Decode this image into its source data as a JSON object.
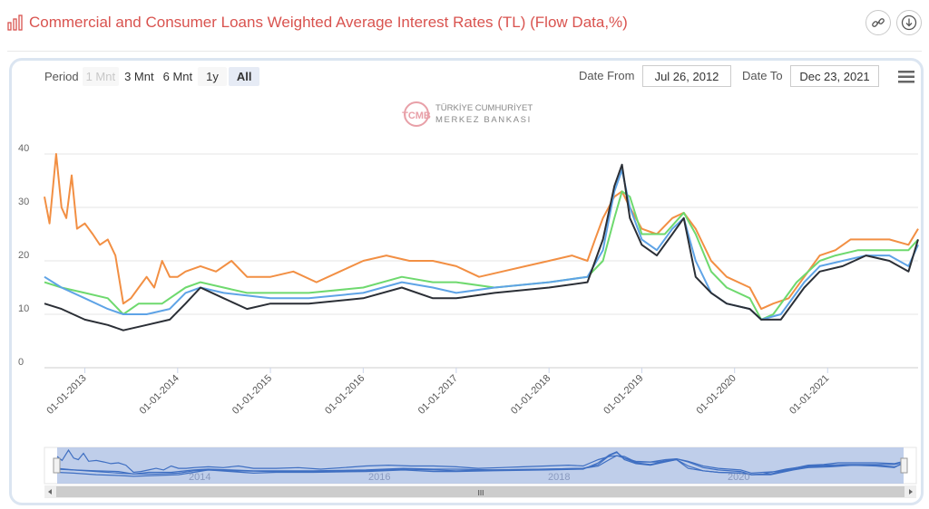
{
  "header": {
    "title": "Commercial and Consumer Loans Weighted Average Interest Rates (TL) (Flow Data,%)",
    "title_icon": "bar-chart-icon",
    "link_button_icon": "link-icon",
    "download_button_icon": "download-icon"
  },
  "range_selector": {
    "label": "Period",
    "buttons": [
      "1 Mnt",
      "3 Mnt",
      "6 Mnt",
      "1y",
      "All"
    ],
    "selected": "All",
    "disabled": "1 Mnt"
  },
  "date_inputs": {
    "from_label": "Date From",
    "from_value": "Jul 26, 2012",
    "to_label": "Date To",
    "to_value": "Dec 23, 2021"
  },
  "menu_icon": "hamburger-menu-icon",
  "watermark": {
    "line1": "TÜRKİYE CUMHURİYET",
    "line2": "MERKEZ BANKASI",
    "logo_letters": "TCMB"
  },
  "navigator": {
    "year_labels": [
      "2014",
      "2016",
      "2018",
      "2020"
    ],
    "scrollbar_grip": "III"
  },
  "colors": {
    "title": "#d9534f",
    "series_orange": "#f28f43",
    "series_green": "#6ed96e",
    "series_blue": "#5ea3e6",
    "series_dark": "#2b2f36",
    "navigator_fill": "#b4c6e6",
    "navigator_line": "#3f6fc2"
  },
  "chart_data": {
    "type": "line",
    "title": "Commercial and Consumer Loans Weighted Average Interest Rates (TL) (Flow Data,%)",
    "ylim": [
      0,
      40
    ],
    "yticks": [
      0,
      10,
      20,
      30,
      40
    ],
    "xlim": [
      "2012-07-26",
      "2021-12-23"
    ],
    "xticks": [
      "01-01-2013",
      "01-01-2014",
      "01-01-2015",
      "01-01-2016",
      "01-01-2017",
      "01-01-2018",
      "01-01-2019",
      "01-01-2020",
      "01-01-2021"
    ],
    "grid": true,
    "series": [
      {
        "color": "#f28f43",
        "points": [
          [
            "2012-07-26",
            32
          ],
          [
            "2012-08-15",
            27
          ],
          [
            "2012-09-10",
            40
          ],
          [
            "2012-10-01",
            30
          ],
          [
            "2012-10-20",
            28
          ],
          [
            "2012-11-10",
            36
          ],
          [
            "2012-12-01",
            26
          ],
          [
            "2013-01-01",
            27
          ],
          [
            "2013-02-01",
            25
          ],
          [
            "2013-03-01",
            23
          ],
          [
            "2013-04-01",
            24
          ],
          [
            "2013-05-01",
            21
          ],
          [
            "2013-06-01",
            12
          ],
          [
            "2013-07-01",
            13
          ],
          [
            "2013-08-01",
            15
          ],
          [
            "2013-09-01",
            17
          ],
          [
            "2013-10-01",
            15
          ],
          [
            "2013-11-01",
            20
          ],
          [
            "2013-12-01",
            17
          ],
          [
            "2014-01-01",
            17
          ],
          [
            "2014-02-01",
            18
          ],
          [
            "2014-04-01",
            19
          ],
          [
            "2014-06-01",
            18
          ],
          [
            "2014-08-01",
            20
          ],
          [
            "2014-10-01",
            17
          ],
          [
            "2015-01-01",
            17
          ],
          [
            "2015-04-01",
            18
          ],
          [
            "2015-07-01",
            16
          ],
          [
            "2015-10-01",
            18
          ],
          [
            "2016-01-01",
            20
          ],
          [
            "2016-04-01",
            21
          ],
          [
            "2016-07-01",
            20
          ],
          [
            "2016-10-01",
            20
          ],
          [
            "2017-01-01",
            19
          ],
          [
            "2017-04-01",
            17
          ],
          [
            "2017-07-01",
            18
          ],
          [
            "2017-10-01",
            19
          ],
          [
            "2018-01-01",
            20
          ],
          [
            "2018-04-01",
            21
          ],
          [
            "2018-06-01",
            20
          ],
          [
            "2018-07-01",
            24
          ],
          [
            "2018-08-01",
            28
          ],
          [
            "2018-09-15",
            32
          ],
          [
            "2018-10-15",
            33
          ],
          [
            "2018-11-15",
            30
          ],
          [
            "2019-01-01",
            26
          ],
          [
            "2019-03-01",
            25
          ],
          [
            "2019-05-01",
            28
          ],
          [
            "2019-06-15",
            29
          ],
          [
            "2019-08-01",
            26
          ],
          [
            "2019-10-01",
            20
          ],
          [
            "2019-12-01",
            17
          ],
          [
            "2020-03-01",
            15
          ],
          [
            "2020-04-15",
            11
          ],
          [
            "2020-06-01",
            12
          ],
          [
            "2020-08-01",
            13
          ],
          [
            "2020-10-01",
            17
          ],
          [
            "2020-12-01",
            21
          ],
          [
            "2021-02-01",
            22
          ],
          [
            "2021-04-01",
            24
          ],
          [
            "2021-06-01",
            24
          ],
          [
            "2021-09-01",
            24
          ],
          [
            "2021-11-15",
            23
          ],
          [
            "2021-12-23",
            26
          ]
        ]
      },
      {
        "color": "#6ed96e",
        "points": [
          [
            "2012-07-26",
            16
          ],
          [
            "2012-10-01",
            15
          ],
          [
            "2013-01-01",
            14
          ],
          [
            "2013-04-01",
            13
          ],
          [
            "2013-06-01",
            10
          ],
          [
            "2013-08-01",
            12
          ],
          [
            "2013-11-01",
            12
          ],
          [
            "2014-02-01",
            15
          ],
          [
            "2014-04-01",
            16
          ],
          [
            "2014-07-01",
            15
          ],
          [
            "2014-10-01",
            14
          ],
          [
            "2015-01-01",
            14
          ],
          [
            "2015-06-01",
            14
          ],
          [
            "2016-01-01",
            15
          ],
          [
            "2016-06-01",
            17
          ],
          [
            "2016-10-01",
            16
          ],
          [
            "2017-01-01",
            16
          ],
          [
            "2017-06-01",
            15
          ],
          [
            "2018-01-01",
            16
          ],
          [
            "2018-06-01",
            17
          ],
          [
            "2018-08-01",
            20
          ],
          [
            "2018-09-15",
            28
          ],
          [
            "2018-10-15",
            33
          ],
          [
            "2018-11-15",
            32
          ],
          [
            "2019-01-01",
            25
          ],
          [
            "2019-04-01",
            25
          ],
          [
            "2019-06-15",
            29
          ],
          [
            "2019-08-01",
            25
          ],
          [
            "2019-10-01",
            18
          ],
          [
            "2019-12-01",
            15
          ],
          [
            "2020-03-01",
            13
          ],
          [
            "2020-04-15",
            9
          ],
          [
            "2020-06-01",
            10
          ],
          [
            "2020-09-01",
            16
          ],
          [
            "2020-12-01",
            20
          ],
          [
            "2021-02-01",
            21
          ],
          [
            "2021-05-01",
            22
          ],
          [
            "2021-08-01",
            22
          ],
          [
            "2021-11-15",
            22
          ],
          [
            "2021-12-23",
            24
          ]
        ]
      },
      {
        "color": "#5ea3e6",
        "points": [
          [
            "2012-07-26",
            17
          ],
          [
            "2012-10-01",
            15
          ],
          [
            "2013-01-01",
            13
          ],
          [
            "2013-04-01",
            11
          ],
          [
            "2013-06-01",
            10
          ],
          [
            "2013-09-01",
            10
          ],
          [
            "2013-12-01",
            11
          ],
          [
            "2014-02-01",
            14
          ],
          [
            "2014-04-01",
            15
          ],
          [
            "2014-07-01",
            14
          ],
          [
            "2015-01-01",
            13
          ],
          [
            "2015-06-01",
            13
          ],
          [
            "2016-01-01",
            14
          ],
          [
            "2016-06-01",
            16
          ],
          [
            "2016-10-01",
            15
          ],
          [
            "2017-01-01",
            14
          ],
          [
            "2017-06-01",
            15
          ],
          [
            "2018-01-01",
            16
          ],
          [
            "2018-06-01",
            17
          ],
          [
            "2018-08-01",
            22
          ],
          [
            "2018-09-15",
            33
          ],
          [
            "2018-10-15",
            37
          ],
          [
            "2018-11-15",
            30
          ],
          [
            "2019-01-01",
            24
          ],
          [
            "2019-03-01",
            22
          ],
          [
            "2019-05-01",
            26
          ],
          [
            "2019-06-15",
            28
          ],
          [
            "2019-08-01",
            20
          ],
          [
            "2019-10-01",
            14
          ],
          [
            "2019-12-01",
            12
          ],
          [
            "2020-03-01",
            11
          ],
          [
            "2020-04-15",
            9
          ],
          [
            "2020-07-01",
            10
          ],
          [
            "2020-10-01",
            16
          ],
          [
            "2020-12-01",
            19
          ],
          [
            "2021-03-01",
            20
          ],
          [
            "2021-06-01",
            21
          ],
          [
            "2021-09-01",
            21
          ],
          [
            "2021-11-15",
            19
          ],
          [
            "2021-12-23",
            23
          ]
        ]
      },
      {
        "color": "#2b2f36",
        "points": [
          [
            "2012-07-26",
            12
          ],
          [
            "2012-10-01",
            11
          ],
          [
            "2013-01-01",
            9
          ],
          [
            "2013-04-01",
            8
          ],
          [
            "2013-06-01",
            7
          ],
          [
            "2013-09-01",
            8
          ],
          [
            "2013-12-01",
            9
          ],
          [
            "2014-02-01",
            12
          ],
          [
            "2014-04-01",
            15
          ],
          [
            "2014-07-01",
            13
          ],
          [
            "2014-10-01",
            11
          ],
          [
            "2015-01-01",
            12
          ],
          [
            "2015-06-01",
            12
          ],
          [
            "2016-01-01",
            13
          ],
          [
            "2016-06-01",
            15
          ],
          [
            "2016-10-01",
            13
          ],
          [
            "2017-01-01",
            13
          ],
          [
            "2017-06-01",
            14
          ],
          [
            "2018-01-01",
            15
          ],
          [
            "2018-06-01",
            16
          ],
          [
            "2018-08-01",
            24
          ],
          [
            "2018-09-15",
            34
          ],
          [
            "2018-10-15",
            38
          ],
          [
            "2018-11-15",
            28
          ],
          [
            "2019-01-01",
            23
          ],
          [
            "2019-03-01",
            21
          ],
          [
            "2019-05-01",
            25
          ],
          [
            "2019-06-15",
            28
          ],
          [
            "2019-08-01",
            17
          ],
          [
            "2019-10-01",
            14
          ],
          [
            "2019-12-01",
            12
          ],
          [
            "2020-03-01",
            11
          ],
          [
            "2020-04-15",
            9
          ],
          [
            "2020-07-01",
            9
          ],
          [
            "2020-10-01",
            15
          ],
          [
            "2020-12-01",
            18
          ],
          [
            "2021-03-01",
            19
          ],
          [
            "2021-06-01",
            21
          ],
          [
            "2021-09-01",
            20
          ],
          [
            "2021-11-15",
            18
          ],
          [
            "2021-12-23",
            24
          ]
        ]
      }
    ]
  }
}
